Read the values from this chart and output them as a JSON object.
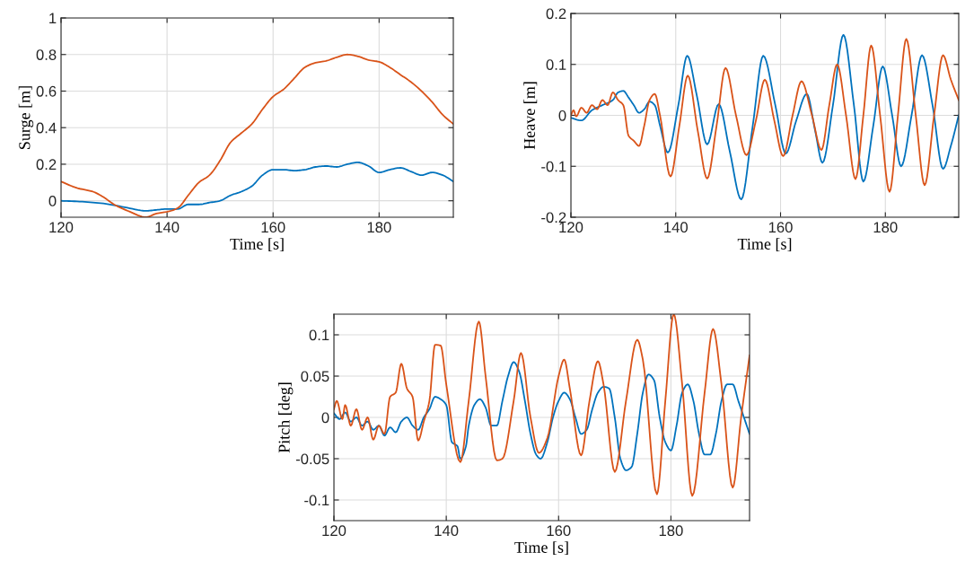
{
  "chart_data": [
    {
      "type": "line",
      "xlabel": "Time [s]",
      "ylabel": "Surge [m]",
      "xlim": [
        120,
        194
      ],
      "xticks": [
        120,
        140,
        160,
        180
      ],
      "ylim": [
        -0.09,
        1
      ],
      "yticks": [
        0,
        0.2,
        0.4,
        0.6,
        0.8,
        1
      ],
      "grid": true,
      "line_style": "solid",
      "series": [
        {
          "color": "#0072bd",
          "x": [
            120,
            124,
            128,
            132,
            136,
            138,
            140,
            142,
            144,
            146,
            148,
            150,
            152,
            154,
            156,
            158,
            160,
            162,
            164,
            166,
            168,
            170,
            172,
            174,
            176,
            178,
            180,
            182,
            184,
            186,
            188,
            190,
            192,
            194
          ],
          "values": [
            0.0,
            -0.005,
            -0.015,
            -0.035,
            -0.055,
            -0.05,
            -0.045,
            -0.045,
            -0.02,
            -0.02,
            -0.01,
            0.0,
            0.03,
            0.05,
            0.08,
            0.14,
            0.17,
            0.17,
            0.165,
            0.17,
            0.185,
            0.19,
            0.185,
            0.2,
            0.21,
            0.19,
            0.155,
            0.17,
            0.18,
            0.16,
            0.14,
            0.155,
            0.14,
            0.105
          ]
        },
        {
          "color": "#d95319",
          "x": [
            120,
            123,
            126,
            128,
            130,
            133,
            136,
            138,
            140,
            142,
            144,
            146,
            148,
            150,
            152,
            154,
            156,
            158,
            160,
            162,
            164,
            166,
            168,
            170,
            172,
            174,
            176,
            178,
            180,
            182,
            184,
            186,
            188,
            190,
            192,
            194
          ],
          "values": [
            0.105,
            0.07,
            0.05,
            0.02,
            -0.02,
            -0.06,
            -0.09,
            -0.07,
            -0.06,
            -0.04,
            0.03,
            0.1,
            0.14,
            0.22,
            0.32,
            0.37,
            0.42,
            0.5,
            0.57,
            0.61,
            0.67,
            0.73,
            0.755,
            0.765,
            0.785,
            0.8,
            0.79,
            0.77,
            0.76,
            0.73,
            0.69,
            0.65,
            0.6,
            0.54,
            0.47,
            0.42
          ]
        }
      ]
    },
    {
      "type": "line",
      "xlabel": "Time [s]",
      "ylabel": "Heave [m]",
      "xlim": [
        120,
        194
      ],
      "xticks": [
        120,
        140,
        160,
        180
      ],
      "ylim": [
        -0.2,
        0.2
      ],
      "yticks": [
        -0.2,
        -0.1,
        0,
        0.1,
        0.2
      ],
      "grid": true,
      "line_style": "solid",
      "series": [
        {
          "color": "#0072bd",
          "x": [
            120,
            122,
            124,
            126,
            128,
            129,
            130,
            131,
            132,
            133,
            134,
            135,
            136,
            137,
            138.5,
            140.5,
            142.2,
            144,
            146,
            148.2,
            150.3,
            152.5,
            154.7,
            156.7,
            159,
            161,
            163,
            165,
            166.6,
            168,
            170,
            172,
            174,
            175.8,
            177.7,
            179.5,
            181.3,
            183,
            185,
            187,
            189,
            191,
            192.5,
            194
          ],
          "values": [
            -0.005,
            -0.01,
            0.01,
            0.02,
            0.03,
            0.045,
            0.048,
            0.035,
            0.02,
            0.005,
            0.012,
            0.027,
            0.02,
            -0.02,
            -0.073,
            0.02,
            0.117,
            0.04,
            -0.057,
            0.022,
            -0.07,
            -0.165,
            -0.02,
            0.117,
            0.02,
            -0.075,
            -0.01,
            0.042,
            -0.03,
            -0.093,
            0.02,
            0.158,
            0.02,
            -0.13,
            -0.02,
            0.096,
            0.0,
            -0.1,
            0.0,
            0.118,
            0.02,
            -0.105,
            -0.06,
            0.0
          ]
        },
        {
          "color": "#d95319",
          "x": [
            120,
            120.5,
            121,
            122,
            123,
            124,
            125,
            126,
            127,
            128,
            129,
            130,
            131,
            132,
            133,
            134,
            135,
            136,
            137,
            139,
            140.7,
            142.3,
            144.2,
            146,
            147.8,
            149.5,
            151.5,
            153.5,
            155.3,
            157,
            158.8,
            160.5,
            162.3,
            164,
            166,
            167.8,
            169.3,
            170.8,
            172.5,
            174.3,
            175.8,
            177.3,
            179,
            180.8,
            182.4,
            184,
            185.8,
            187.5,
            189.3,
            191,
            192.5,
            194
          ],
          "values": [
            0.0,
            0.01,
            -0.002,
            0.015,
            0.005,
            0.02,
            0.012,
            0.03,
            0.02,
            0.045,
            0.03,
            0.02,
            -0.04,
            -0.05,
            -0.06,
            -0.02,
            0.03,
            0.042,
            0.0,
            -0.12,
            -0.02,
            0.078,
            -0.03,
            -0.124,
            -0.02,
            0.093,
            0.0,
            -0.078,
            -0.01,
            0.07,
            -0.01,
            -0.08,
            0.0,
            0.067,
            0.0,
            -0.068,
            0.02,
            0.1,
            0.0,
            -0.125,
            0.0,
            0.137,
            0.0,
            -0.15,
            0.0,
            0.15,
            0.0,
            -0.137,
            0.0,
            0.118,
            0.07,
            0.03
          ]
        }
      ]
    },
    {
      "type": "line",
      "xlabel": "Time [s]",
      "ylabel": "Pitch [deg]",
      "xlim": [
        120,
        194
      ],
      "xticks": [
        120,
        140,
        160,
        180
      ],
      "ylim": [
        -0.125,
        0.125
      ],
      "yticks": [
        -0.1,
        -0.05,
        0,
        0.05,
        0.1
      ],
      "grid": true,
      "line_style": "solid",
      "series": [
        {
          "color": "#0072bd",
          "x": [
            120,
            121,
            122,
            123,
            124,
            125,
            126,
            127,
            128,
            129,
            130,
            131,
            132,
            133,
            134,
            135,
            136,
            137,
            138,
            139,
            140,
            141,
            142,
            142.5,
            143.5,
            144,
            145,
            146,
            147,
            148,
            149,
            150,
            151,
            152,
            153,
            154,
            155,
            156,
            156.8,
            158,
            159,
            160,
            161,
            162,
            163,
            164,
            165,
            166,
            167,
            168,
            169,
            170,
            171,
            172,
            173,
            174,
            175,
            176,
            177,
            178,
            179,
            180,
            181,
            182,
            183,
            184,
            185,
            186,
            187,
            188,
            189,
            190,
            191,
            192,
            193,
            194
          ],
          "values": [
            0.005,
            -0.002,
            0.006,
            -0.005,
            0.0,
            -0.01,
            -0.005,
            -0.015,
            -0.01,
            -0.022,
            -0.012,
            -0.018,
            -0.005,
            0.0,
            -0.01,
            -0.015,
            0.0,
            0.01,
            0.025,
            0.022,
            0.015,
            -0.03,
            -0.035,
            -0.05,
            -0.035,
            -0.01,
            0.015,
            0.022,
            0.012,
            -0.01,
            -0.01,
            0.02,
            0.05,
            0.067,
            0.055,
            0.02,
            -0.02,
            -0.045,
            -0.05,
            -0.03,
            0.0,
            0.02,
            0.03,
            0.022,
            0.0,
            -0.02,
            -0.015,
            0.01,
            0.03,
            0.037,
            0.035,
            0.0,
            -0.05,
            -0.064,
            -0.06,
            -0.02,
            0.03,
            0.052,
            0.045,
            0.0,
            -0.03,
            -0.04,
            -0.01,
            0.03,
            0.04,
            0.02,
            -0.02,
            -0.045,
            -0.045,
            -0.02,
            0.02,
            0.04,
            0.04,
            0.02,
            0.0,
            -0.02
          ]
        },
        {
          "color": "#d95319",
          "x": [
            120,
            120.5,
            121.5,
            122,
            123,
            124,
            125,
            126,
            127,
            128,
            129,
            130,
            131,
            132,
            133,
            134,
            135,
            136,
            137,
            138,
            139,
            140,
            142.5,
            144,
            145.8,
            147,
            149,
            150,
            152,
            153.3,
            155,
            156.5,
            158,
            160,
            161,
            162,
            164,
            165.5,
            167,
            168,
            170,
            172,
            174,
            175,
            177.5,
            179,
            180.5,
            182,
            183.8,
            186,
            187.5,
            189,
            191,
            192.5,
            194
          ],
          "values": [
            0.01,
            0.02,
            -0.002,
            0.015,
            -0.01,
            0.01,
            -0.015,
            0.0,
            -0.027,
            -0.01,
            -0.02,
            0.025,
            0.03,
            0.065,
            0.035,
            0.025,
            -0.028,
            -0.005,
            0.02,
            0.088,
            0.087,
            0.04,
            -0.054,
            0.02,
            0.116,
            0.05,
            -0.052,
            -0.05,
            0.02,
            0.078,
            0.0,
            -0.043,
            -0.025,
            0.05,
            0.07,
            0.035,
            -0.046,
            0.02,
            0.068,
            0.04,
            -0.066,
            0.02,
            0.094,
            0.07,
            -0.093,
            0.02,
            0.125,
            0.04,
            -0.095,
            0.03,
            0.107,
            0.04,
            -0.085,
            0.0,
            0.075
          ]
        }
      ]
    }
  ]
}
